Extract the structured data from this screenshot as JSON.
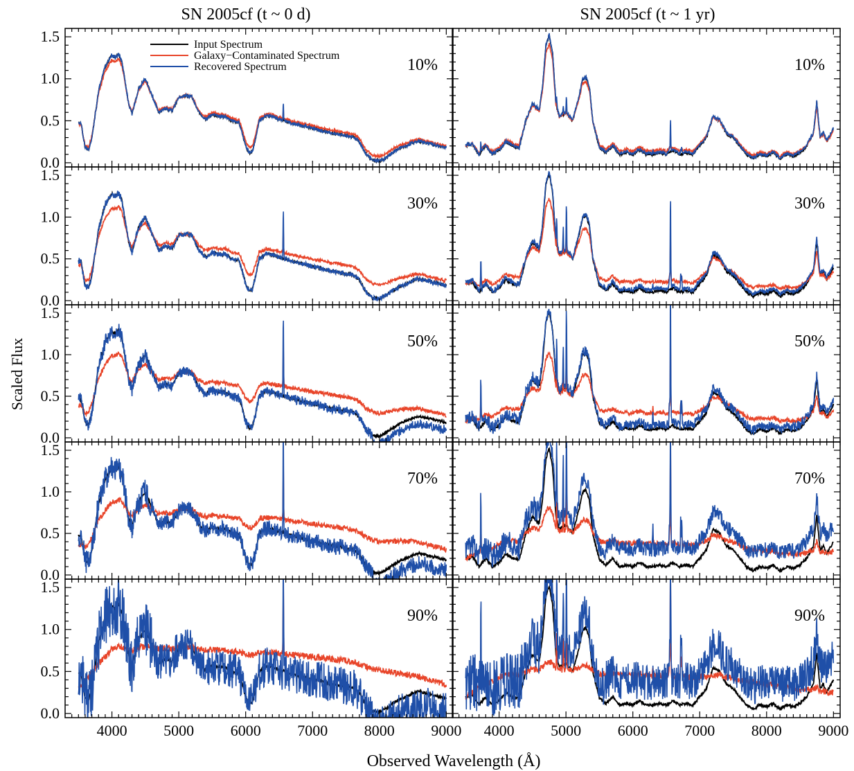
{
  "figure": {
    "ylabel": "Scaled Flux",
    "xlabel": "Observed Wavelength (Å)"
  },
  "legend": {
    "entries": [
      {
        "label": "Input Spectrum",
        "color": "#000000"
      },
      {
        "label": "Galaxy−Contaminated Spectrum",
        "color": "#e8452a"
      },
      {
        "label": "Recovered Spectrum",
        "color": "#1f4fa8"
      }
    ]
  },
  "chart_data": {
    "type": "line",
    "columns": [
      {
        "title": "SN 2005cf (t ~ 0 d)"
      },
      {
        "title": "SN 2005cf (t ~ 1 yr)"
      }
    ],
    "contamination_levels": [
      "10%",
      "30%",
      "50%",
      "70%",
      "90%"
    ],
    "xlim": [
      3300,
      9100
    ],
    "ylim": [
      -0.05,
      1.6
    ],
    "xticks": [
      4000,
      5000,
      6000,
      7000,
      8000,
      9000
    ],
    "xtick_labels": [
      "4000",
      "5000",
      "6000",
      "7000",
      "8000",
      "9000"
    ],
    "yticks": [
      0.0,
      0.5,
      1.0,
      1.5
    ],
    "ytick_labels": [
      "0.0",
      "0.5",
      "1.0",
      "1.5"
    ],
    "x_range_plotted": [
      3500,
      9000
    ],
    "input_spectra": {
      "early": {
        "x": [
          3500,
          3540,
          3600,
          3650,
          3700,
          3800,
          3900,
          4000,
          4050,
          4100,
          4150,
          4200,
          4250,
          4300,
          4400,
          4500,
          4600,
          4700,
          4800,
          4900,
          5000,
          5100,
          5200,
          5300,
          5400,
          5500,
          5600,
          5700,
          5800,
          5900,
          5950,
          6000,
          6050,
          6100,
          6150,
          6200,
          6300,
          6400,
          6500,
          6600,
          6700,
          6800,
          6900,
          7000,
          7100,
          7200,
          7300,
          7400,
          7500,
          7600,
          7700,
          7800,
          7900,
          8000,
          8100,
          8200,
          8300,
          8400,
          8500,
          8600,
          8700,
          8800,
          8900,
          9000
        ],
        "y": [
          0.48,
          0.46,
          0.18,
          0.15,
          0.3,
          0.85,
          1.15,
          1.28,
          1.25,
          1.3,
          1.2,
          0.95,
          0.7,
          0.58,
          0.88,
          1.0,
          0.8,
          0.6,
          0.65,
          0.62,
          0.78,
          0.8,
          0.78,
          0.6,
          0.52,
          0.58,
          0.55,
          0.55,
          0.5,
          0.48,
          0.35,
          0.2,
          0.12,
          0.13,
          0.3,
          0.5,
          0.56,
          0.55,
          0.52,
          0.5,
          0.47,
          0.45,
          0.43,
          0.41,
          0.39,
          0.37,
          0.35,
          0.34,
          0.32,
          0.31,
          0.25,
          0.1,
          0.03,
          0.02,
          0.06,
          0.12,
          0.17,
          0.2,
          0.24,
          0.26,
          0.24,
          0.22,
          0.2,
          0.18
        ]
      },
      "late": {
        "x": [
          3500,
          3600,
          3700,
          3800,
          3900,
          4000,
          4100,
          4200,
          4300,
          4400,
          4500,
          4600,
          4650,
          4700,
          4750,
          4800,
          4850,
          4900,
          5000,
          5100,
          5200,
          5250,
          5300,
          5350,
          5400,
          5500,
          5600,
          5700,
          5800,
          5900,
          6000,
          6100,
          6200,
          6300,
          6400,
          6500,
          6600,
          6700,
          6800,
          6900,
          7000,
          7100,
          7200,
          7300,
          7400,
          7500,
          7600,
          7700,
          7800,
          7900,
          8000,
          8100,
          8200,
          8300,
          8400,
          8500,
          8600,
          8700,
          8750,
          8800,
          8850,
          8900,
          9000
        ],
        "y": [
          0.2,
          0.22,
          0.1,
          0.2,
          0.1,
          0.15,
          0.25,
          0.2,
          0.18,
          0.5,
          0.7,
          0.62,
          0.9,
          1.4,
          1.52,
          1.3,
          0.7,
          0.55,
          0.6,
          0.5,
          0.8,
          1.0,
          1.02,
          0.9,
          0.5,
          0.18,
          0.12,
          0.2,
          0.1,
          0.12,
          0.1,
          0.15,
          0.1,
          0.1,
          0.12,
          0.1,
          0.15,
          0.1,
          0.12,
          0.1,
          0.2,
          0.3,
          0.55,
          0.5,
          0.35,
          0.3,
          0.2,
          0.1,
          0.05,
          0.1,
          0.08,
          0.12,
          0.05,
          0.1,
          0.08,
          0.12,
          0.2,
          0.35,
          0.72,
          0.3,
          0.35,
          0.25,
          0.4
        ]
      }
    },
    "galaxy_spectrum": {
      "x": [
        3500,
        3700,
        3900,
        4000,
        4200,
        4500,
        5000,
        5500,
        6000,
        6500,
        7000,
        7500,
        8000,
        8500,
        9000
      ],
      "y": [
        0.3,
        0.55,
        0.65,
        0.75,
        0.8,
        0.82,
        0.84,
        0.82,
        0.8,
        0.78,
        0.74,
        0.7,
        0.6,
        0.5,
        0.38
      ]
    },
    "emission_lines_early": [
      {
        "x": 6563,
        "amp": 0.95,
        "noise": true
      }
    ],
    "emission_lines_late": [
      {
        "x": 3727,
        "amp": 0.55
      },
      {
        "x": 4861,
        "amp": 0.5
      },
      {
        "x": 4959,
        "amp": 0.45
      },
      {
        "x": 5007,
        "amp": 0.9
      },
      {
        "x": 6300,
        "amp": 0.15
      },
      {
        "x": 6548,
        "amp": 0.25
      },
      {
        "x": 6563,
        "amp": 1.8
      },
      {
        "x": 6717,
        "amp": 0.3
      },
      {
        "x": 6731,
        "amp": 0.28
      }
    ],
    "noise_amplitude_recovered": [
      0.008,
      0.02,
      0.05,
      0.09,
      0.22
    ]
  }
}
